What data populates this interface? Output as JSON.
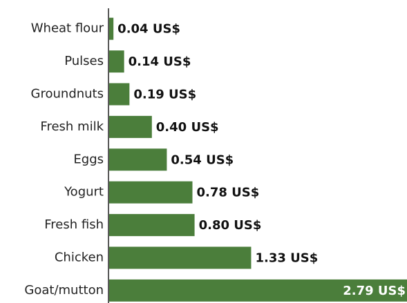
{
  "chart_data": {
    "type": "bar",
    "orientation": "horizontal",
    "categories": [
      "Wheat flour",
      "Pulses",
      "Groundnuts",
      "Fresh milk",
      "Eggs",
      "Yogurt",
      "Fresh fish",
      "Chicken",
      "Goat/mutton"
    ],
    "values": [
      0.04,
      0.14,
      0.19,
      0.4,
      0.54,
      0.78,
      0.8,
      1.33,
      2.79
    ],
    "value_labels": [
      "0.04 US$",
      "0.14 US$",
      "0.19 US$",
      "0.40 US$",
      "0.54 US$",
      "0.78 US$",
      "0.80 US$",
      "1.33 US$",
      "2.79 US$"
    ],
    "color": "#4b7e3b"
  }
}
